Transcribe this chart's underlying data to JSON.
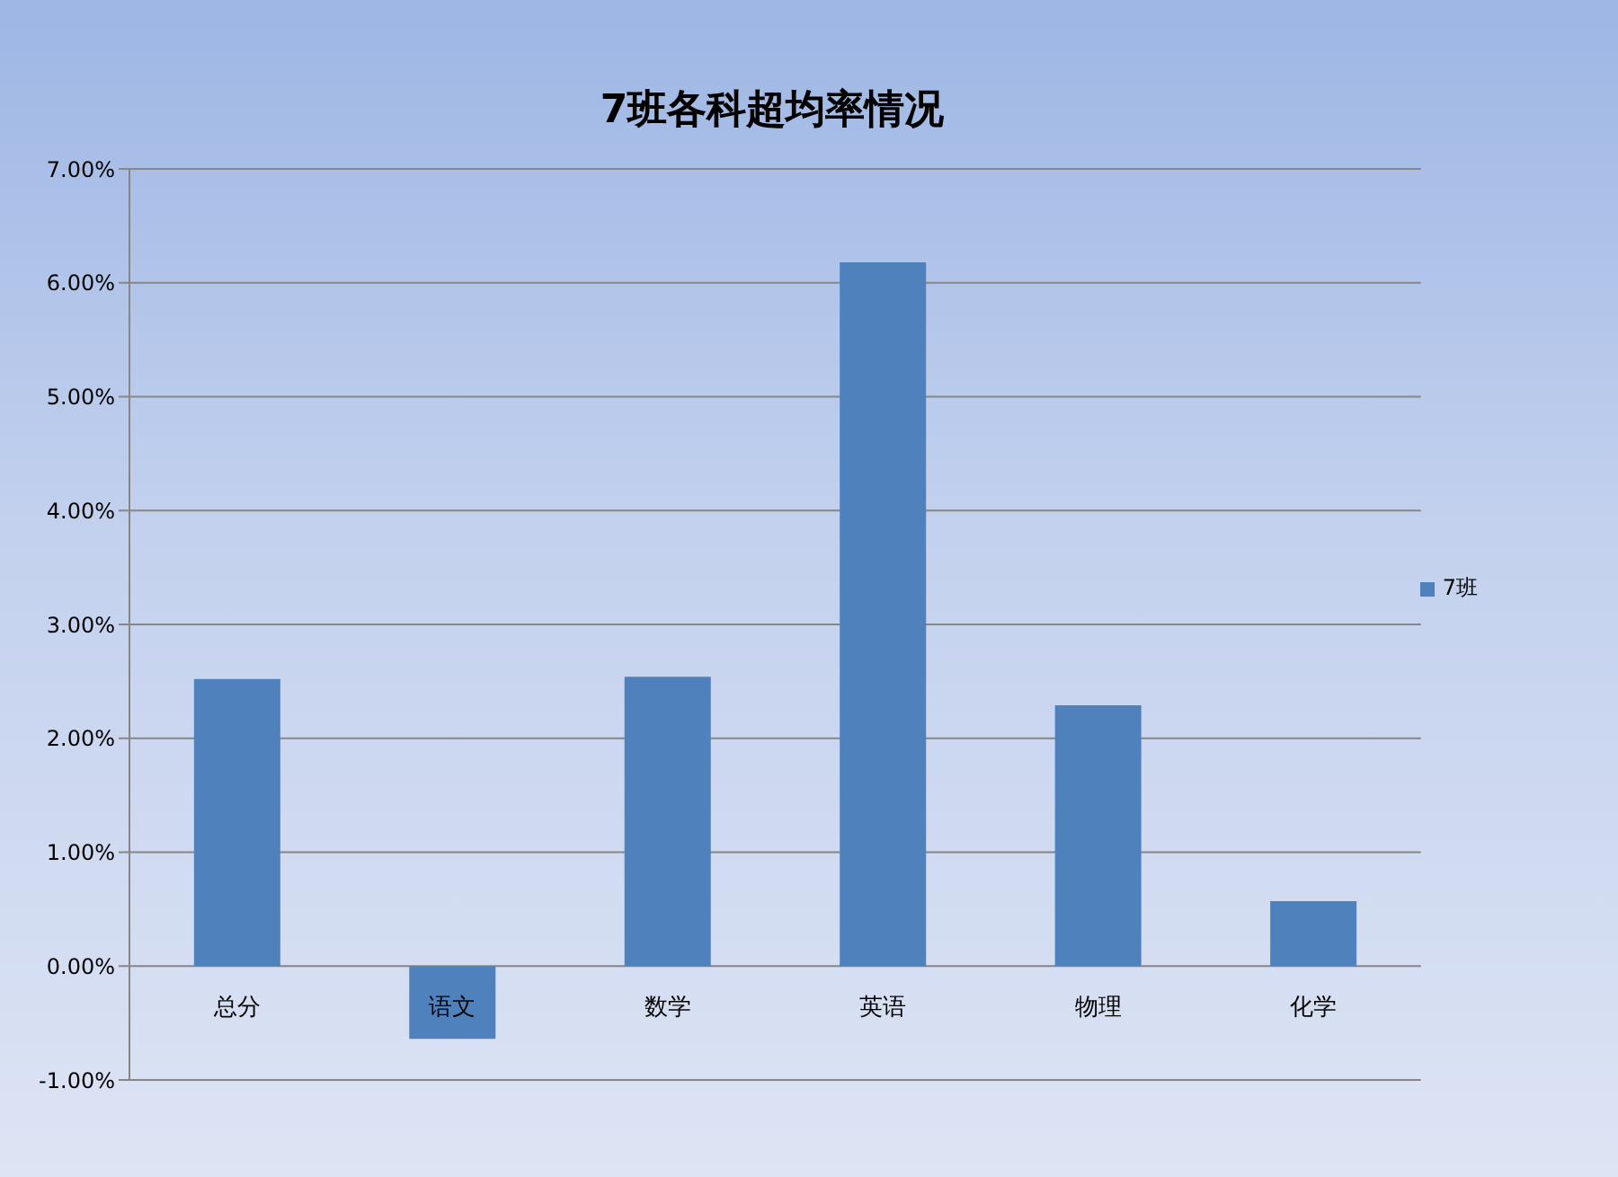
{
  "chart_data": {
    "type": "bar",
    "title": "7班各科超均率情况",
    "categories": [
      "总分",
      "语文",
      "数学",
      "英语",
      "物理",
      "化学"
    ],
    "series": [
      {
        "name": "7班",
        "color": "#4f81bd",
        "values": [
          2.52,
          -0.64,
          2.54,
          6.18,
          2.29,
          0.57
        ]
      }
    ],
    "ylim": [
      -1,
      7
    ],
    "yticks": [
      {
        "value": -1,
        "label": "-1.00%"
      },
      {
        "value": 0,
        "label": "0.00%"
      },
      {
        "value": 1,
        "label": "1.00%"
      },
      {
        "value": 2,
        "label": "2.00%"
      },
      {
        "value": 3,
        "label": "3.00%"
      },
      {
        "value": 4,
        "label": "4.00%"
      },
      {
        "value": 5,
        "label": "5.00%"
      },
      {
        "value": 6,
        "label": "6.00%"
      },
      {
        "value": 7,
        "label": "7.00%"
      }
    ],
    "grid": "y",
    "legend": "right"
  }
}
